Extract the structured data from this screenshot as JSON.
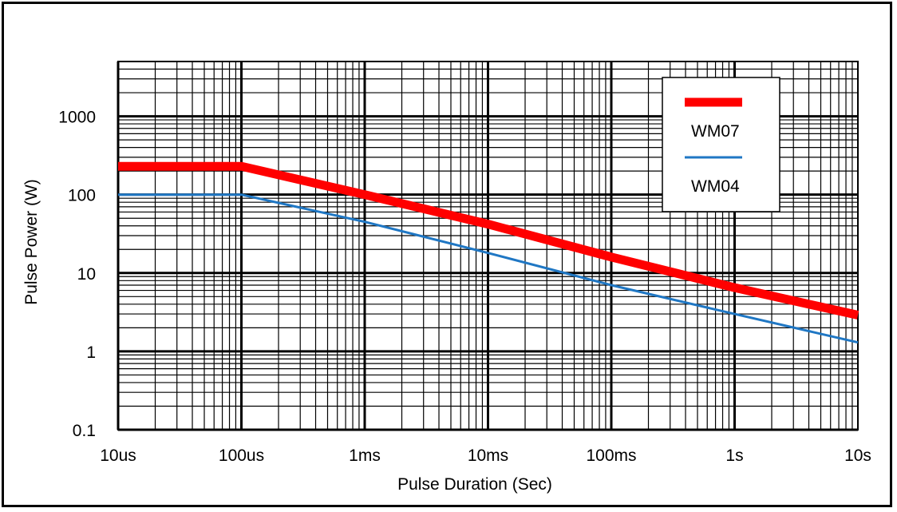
{
  "chart_data": {
    "type": "line",
    "x_scale": "log",
    "y_scale": "log",
    "xlim": [
      1e-05,
      10
    ],
    "ylim": [
      0.1,
      5000
    ],
    "xlabel": "Pulse Duration (Sec)",
    "ylabel": "Pulse Power (W)",
    "x_tick_values": [
      1e-05,
      0.0001,
      0.001,
      0.01,
      0.1,
      1,
      10
    ],
    "x_tick_labels": [
      "10us",
      "100us",
      "1ms",
      "10ms",
      "100ms",
      "1s",
      "10s"
    ],
    "y_tick_values": [
      0.1,
      1,
      10,
      100,
      1000
    ],
    "y_tick_labels": [
      "0.1",
      "1",
      "10",
      "100",
      "1000"
    ],
    "grid": true,
    "legend_position": "top-right",
    "series": [
      {
        "name": "WM07",
        "color": "#ff0000",
        "x": [
          1e-05,
          0.0001,
          0.001,
          0.01,
          0.1,
          1,
          10
        ],
        "y": [
          230,
          230,
          100,
          42,
          16,
          6.5,
          2.9
        ]
      },
      {
        "name": "WM04",
        "color": "#1f77c4",
        "x": [
          1e-05,
          0.0001,
          0.001,
          0.01,
          0.1,
          1,
          10
        ],
        "y": [
          100,
          100,
          45,
          18,
          7,
          3,
          1.3
        ]
      }
    ]
  }
}
